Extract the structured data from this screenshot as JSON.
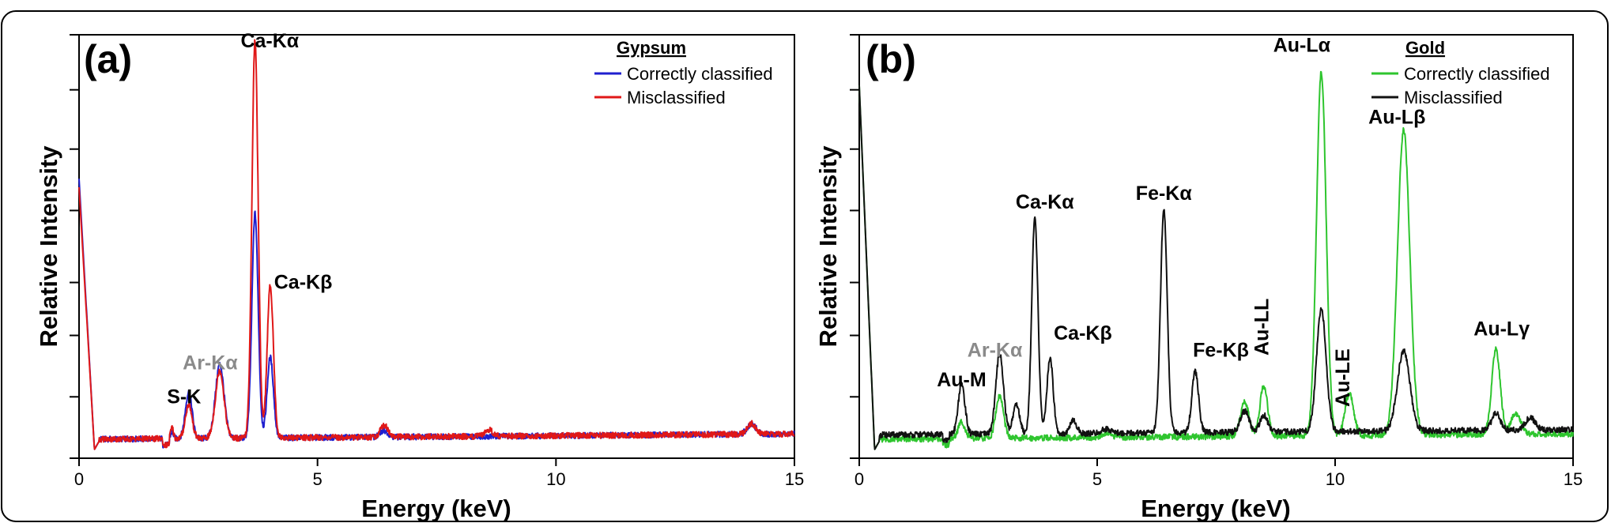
{
  "figure": {
    "frame_color": "#000000"
  },
  "chart_data": [
    {
      "panel_label": "(a)",
      "type": "line",
      "xlabel": "Energy (keV)",
      "ylabel": "Relative Intensity",
      "xlim": [
        0,
        15
      ],
      "ylim": [
        0,
        100
      ],
      "xticks": [
        {
          "value": 0,
          "label": "0"
        },
        {
          "value": 5,
          "label": "5"
        },
        {
          "value": 10,
          "label": "10"
        },
        {
          "value": 15,
          "label": "15"
        }
      ],
      "yticks": [
        0,
        14.5,
        29,
        41.5,
        58.5,
        73,
        87,
        100
      ],
      "legend": {
        "title": "Gypsum",
        "placement": "top-right"
      },
      "series": [
        {
          "name": "Correctly classified",
          "color": "#1f1fcf",
          "baseline": 4.5,
          "start_level": 66,
          "peaks": [
            [
              1.95,
              1.5,
              0.03
            ],
            [
              2.3,
              11,
              0.07
            ],
            [
              2.95,
              17.5,
              0.09
            ],
            [
              3.69,
              53,
              0.065
            ],
            [
              4.01,
              19,
              0.065
            ],
            [
              6.4,
              1.5,
              0.08
            ],
            [
              14.1,
              2.5,
              0.09
            ]
          ]
        },
        {
          "name": "Misclassified",
          "color": "#e01818",
          "baseline": 4.5,
          "start_level": 64,
          "peaks": [
            [
              1.95,
              2.5,
              0.03
            ],
            [
              2.3,
              8,
              0.07
            ],
            [
              2.95,
              16,
              0.09
            ],
            [
              3.69,
              94,
              0.065
            ],
            [
              4.01,
              36,
              0.065
            ],
            [
              6.4,
              2.8,
              0.08
            ],
            [
              8.6,
              1.5,
              0.08
            ],
            [
              14.1,
              2.5,
              0.09
            ]
          ]
        }
      ],
      "annotations": [
        {
          "text": "Ca-Kα",
          "x": 4.0,
          "y": 97,
          "color": "#000000"
        },
        {
          "text": "Ca-Kβ",
          "x": 4.7,
          "y": 40,
          "color": "#000000"
        },
        {
          "text": "Ar-Kα",
          "x": 2.75,
          "y": 21,
          "color": "#8a8a8a"
        },
        {
          "text": "S-K",
          "x": 2.2,
          "y": 13,
          "color": "#000000"
        }
      ]
    },
    {
      "panel_label": "(b)",
      "type": "line",
      "xlabel": "Energy (keV)",
      "ylabel": "Relative Intensity",
      "xlim": [
        0,
        15
      ],
      "ylim": [
        0,
        100
      ],
      "xticks": [
        {
          "value": 0,
          "label": "0"
        },
        {
          "value": 5,
          "label": "5"
        },
        {
          "value": 10,
          "label": "10"
        },
        {
          "value": 15,
          "label": "15"
        }
      ],
      "yticks": [
        0,
        14.5,
        29,
        41.5,
        58.5,
        73,
        87,
        100
      ],
      "legend": {
        "title": "Gold",
        "placement": "top-right"
      },
      "series": [
        {
          "name": "Correctly classified",
          "color": "#2ec52e",
          "baseline": 4.5,
          "start_level": 88,
          "peaks": [
            [
              2.15,
              4,
              0.07
            ],
            [
              2.95,
              10,
              0.08
            ],
            [
              5.2,
              1,
              0.1
            ],
            [
              8.1,
              8,
              0.09
            ],
            [
              8.5,
              12,
              0.08
            ],
            [
              9.71,
              86,
              0.1
            ],
            [
              10.3,
              10,
              0.09
            ],
            [
              11.44,
              72,
              0.13
            ],
            [
              13.38,
              20,
              0.09
            ],
            [
              13.8,
              5,
              0.1
            ]
          ]
        },
        {
          "name": "Misclassified",
          "color": "#111111",
          "baseline": 5.5,
          "start_level": 88,
          "peaks": [
            [
              2.15,
              12,
              0.07
            ],
            [
              2.95,
              19,
              0.08
            ],
            [
              3.3,
              7,
              0.07
            ],
            [
              3.69,
              51,
              0.065
            ],
            [
              4.01,
              18,
              0.065
            ],
            [
              4.5,
              3,
              0.07
            ],
            [
              5.2,
              1,
              0.1
            ],
            [
              6.4,
              53,
              0.07
            ],
            [
              7.06,
              14.5,
              0.07
            ],
            [
              8.1,
              5,
              0.09
            ],
            [
              8.5,
              4,
              0.08
            ],
            [
              9.71,
              29,
              0.1
            ],
            [
              11.44,
              19,
              0.13
            ],
            [
              13.38,
              4,
              0.09
            ],
            [
              14.1,
              3,
              0.1
            ]
          ]
        }
      ],
      "annotations": [
        {
          "text": "Au-Lα",
          "x": 9.3,
          "y": 96,
          "color": "#000000"
        },
        {
          "text": "Au-Lβ",
          "x": 11.3,
          "y": 79,
          "color": "#000000"
        },
        {
          "text": "Fe-Kα",
          "x": 6.4,
          "y": 61,
          "color": "#000000"
        },
        {
          "text": "Ca-Kα",
          "x": 3.9,
          "y": 59,
          "color": "#000000"
        },
        {
          "text": "Ca-Kβ",
          "x": 4.7,
          "y": 28,
          "color": "#000000"
        },
        {
          "text": "Fe-Kβ",
          "x": 7.6,
          "y": 24,
          "color": "#000000"
        },
        {
          "text": "Ar-Kα",
          "x": 2.85,
          "y": 24,
          "color": "#8a8a8a"
        },
        {
          "text": "Au-M",
          "x": 2.15,
          "y": 17,
          "color": "#000000"
        },
        {
          "text": "Au-Lγ",
          "x": 13.5,
          "y": 29,
          "color": "#000000"
        },
        {
          "text": "Au-LL",
          "x": 8.6,
          "y": 31,
          "color": "#000000",
          "rotate": -90
        },
        {
          "text": "Au-LE",
          "x": 10.3,
          "y": 19,
          "color": "#000000",
          "rotate": -90
        }
      ]
    }
  ]
}
